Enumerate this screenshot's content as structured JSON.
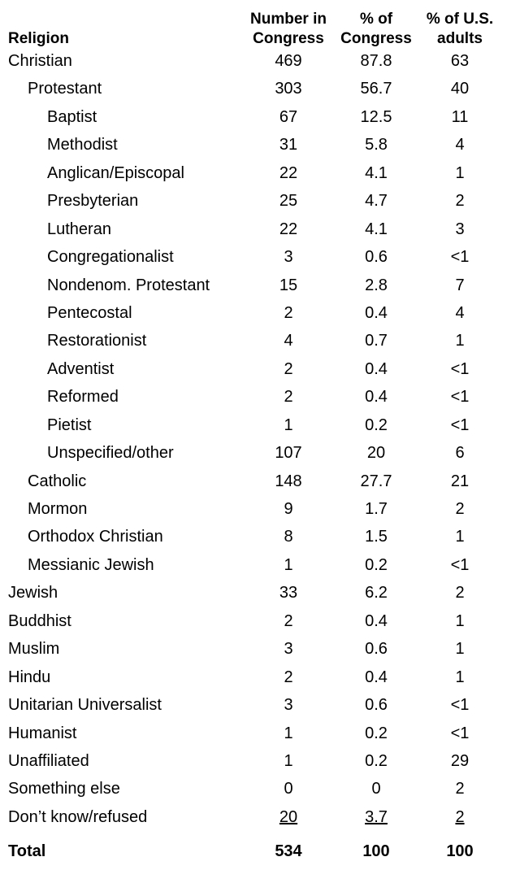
{
  "table": {
    "header": [
      "Religion",
      "Number in Congress",
      "% of Congress",
      "% of U.S. adults"
    ],
    "rows": [
      {
        "label": "Christian",
        "values": [
          "469",
          "87.8",
          "63"
        ],
        "children": [
          {
            "label": "Protestant",
            "values": [
              "303",
              "56.7",
              "40"
            ],
            "children": [
              {
                "label": "Baptist",
                "values": [
                  "67",
                  "12.5",
                  "11"
                ]
              },
              {
                "label": "Methodist",
                "values": [
                  "31",
                  "5.8",
                  "4"
                ]
              },
              {
                "label": "Anglican/Episcopal",
                "values": [
                  "22",
                  "4.1",
                  "1"
                ]
              },
              {
                "label": "Presbyterian",
                "values": [
                  "25",
                  "4.7",
                  "2"
                ]
              },
              {
                "label": "Lutheran",
                "values": [
                  "22",
                  "4.1",
                  "3"
                ]
              },
              {
                "label": "Congregationalist",
                "values": [
                  "3",
                  "0.6",
                  "<1"
                ]
              },
              {
                "label": "Nondenom. Protestant",
                "values": [
                  "15",
                  "2.8",
                  "7"
                ]
              },
              {
                "label": "Pentecostal",
                "values": [
                  "2",
                  "0.4",
                  "4"
                ]
              },
              {
                "label": "Restorationist",
                "values": [
                  "4",
                  "0.7",
                  "1"
                ]
              },
              {
                "label": "Adventist",
                "values": [
                  "2",
                  "0.4",
                  "<1"
                ]
              },
              {
                "label": "Reformed",
                "values": [
                  "2",
                  "0.4",
                  "<1"
                ]
              },
              {
                "label": "Pietist",
                "values": [
                  "1",
                  "0.2",
                  "<1"
                ]
              },
              {
                "label": "Unspecified/other",
                "values": [
                  "107",
                  "20",
                  "6"
                ]
              }
            ]
          },
          {
            "label": "Catholic",
            "values": [
              "148",
              "27.7",
              "21"
            ]
          },
          {
            "label": "Mormon",
            "values": [
              "9",
              "1.7",
              "2"
            ]
          },
          {
            "label": "Orthodox Christian",
            "values": [
              "8",
              "1.5",
              "1"
            ]
          },
          {
            "label": "Messianic Jewish",
            "values": [
              "1",
              "0.2",
              "<1"
            ]
          }
        ]
      },
      {
        "label": "Jewish",
        "values": [
          "33",
          "6.2",
          "2"
        ]
      },
      {
        "label": "Buddhist",
        "values": [
          "2",
          "0.4",
          "1"
        ]
      },
      {
        "label": "Muslim",
        "values": [
          "3",
          "0.6",
          "1"
        ]
      },
      {
        "label": "Hindu",
        "values": [
          "2",
          "0.4",
          "1"
        ]
      },
      {
        "label": "Unitarian Universalist",
        "values": [
          "3",
          "0.6",
          "<1"
        ]
      },
      {
        "label": "Humanist",
        "values": [
          "1",
          "0.2",
          "<1"
        ]
      },
      {
        "label": "Unaffiliated",
        "values": [
          "1",
          "0.2",
          "29"
        ]
      },
      {
        "label": "Something else",
        "values": [
          "0",
          "0",
          "2"
        ]
      },
      {
        "label": "Don’t know/refused",
        "values": [
          "20",
          "3.7",
          "2"
        ]
      }
    ],
    "total": {
      "label": "Total",
      "values": [
        "534",
        "100",
        "100"
      ]
    }
  }
}
